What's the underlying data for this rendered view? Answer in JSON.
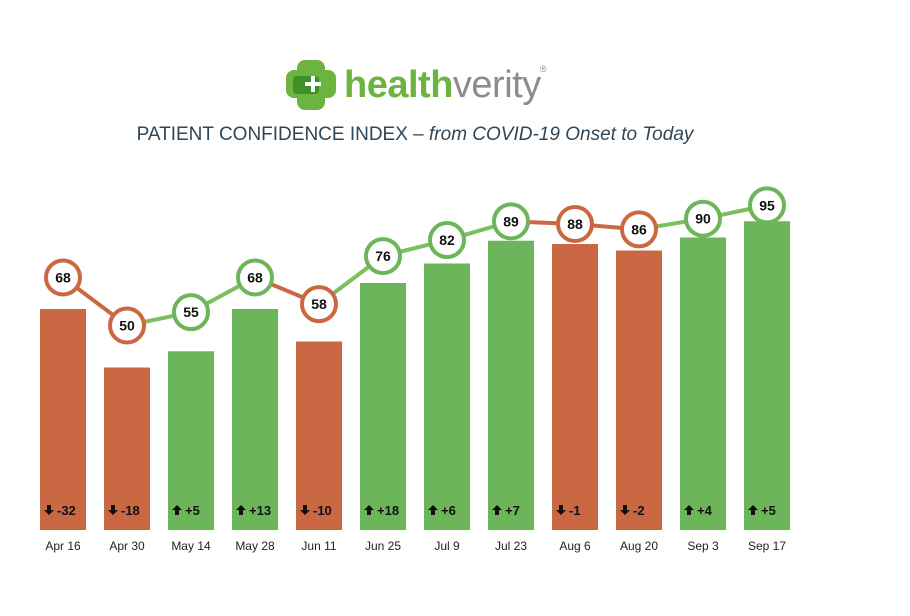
{
  "logo": {
    "brand_part1": "health",
    "brand_part2": "verity",
    "reg_mark": "®",
    "colors": {
      "green": "#6cb33f",
      "dark_green": "#3f8f2a",
      "gray": "#8a8c8e"
    },
    "icon": "cross-logo-icon"
  },
  "title": {
    "main": "PATIENT CONFIDENCE INDEX – ",
    "sub": "from COVID-19 Onset to Today"
  },
  "chart_data": {
    "type": "bar",
    "title": "PATIENT CONFIDENCE INDEX – from COVID-19 Onset to Today",
    "categories": [
      "Apr 16",
      "Apr 30",
      "May 14",
      "May 28",
      "Jun 11",
      "Jun 25",
      "Jul 9",
      "Jul 23",
      "Aug 6",
      "Aug 20",
      "Sep 3",
      "Sep 17"
    ],
    "values": [
      68,
      50,
      55,
      68,
      58,
      76,
      82,
      89,
      88,
      86,
      90,
      95
    ],
    "changes": [
      "-32",
      "-18",
      "+5",
      "+13",
      "-10",
      "+18",
      "+6",
      "+7",
      "-1",
      "-2",
      "+4",
      "+5"
    ],
    "directions": [
      "down",
      "down",
      "up",
      "up",
      "down",
      "up",
      "up",
      "up",
      "down",
      "down",
      "up",
      "up"
    ],
    "colors": {
      "up": "#6cb55a",
      "down": "#cb6844",
      "line": "#7dbf5d",
      "text": "#222222"
    },
    "ylim": [
      0,
      100
    ],
    "grid": false,
    "legend": "none",
    "overlay": "line with circular value labels"
  }
}
